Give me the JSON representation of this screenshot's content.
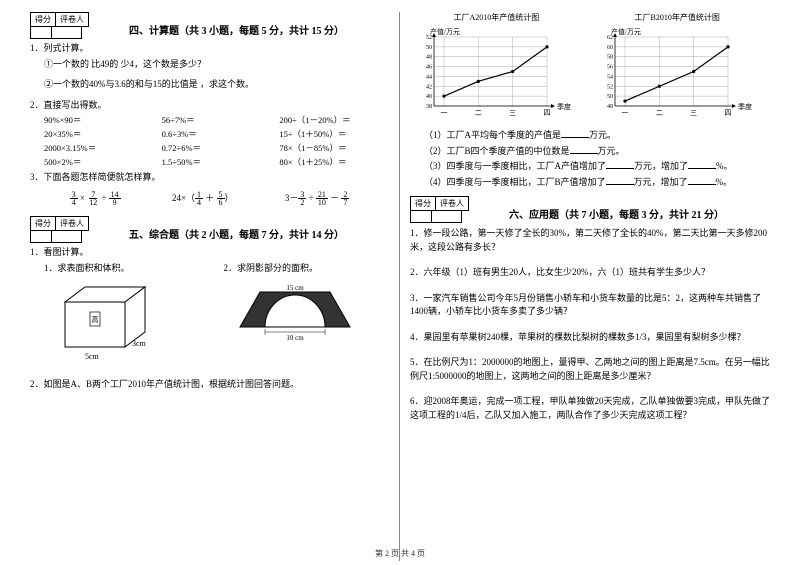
{
  "left": {
    "score_header": [
      "得分",
      "评卷人"
    ],
    "section4_title": "四、计算题（共 3 小题，每题 5 分，共计 15 分）",
    "q1": "1．列式计算。",
    "q1_1": "①一个数的 比49的 少4，这个数是多少？",
    "q1_2": "②一个数的40%与3.6的和与15的比值是 ，求这个数。",
    "q2": "2．直接写出得数。",
    "calc": [
      [
        "90%×90＝",
        "56÷7%＝",
        "200÷（1－20%）＝"
      ],
      [
        "20×35%＝",
        "0.6÷3%＝",
        "15÷（1＋50%）＝"
      ],
      [
        "2000×3.15%＝",
        "0.72÷6%＝",
        "78×（1－85%）＝"
      ],
      [
        "500×2%＝",
        "1.5÷50%＝",
        "80×（1＋25%）＝"
      ]
    ],
    "q3": "3．下面各题怎样简便就怎样算。",
    "fracs": [
      "3/4 × 7/12 ÷ 14/9",
      "24×（1/4 ＋ 5/6）",
      "3－3/2 ÷ 21/10 － 2/7"
    ],
    "section5_title": "五、综合题（共 2 小题，每题 7 分，共计 14 分）",
    "q5_1": "1．看图计算。",
    "q5_1a": "1．求表面积和体积。",
    "q5_1b": "2．求阴影部分的面积。",
    "cuboid": {
      "w": "5cm",
      "h": "3cm",
      "d_label": "高"
    },
    "arch": {
      "top": "15 cm",
      "bottom": "10 cm"
    },
    "q5_2": "2．如图是A、B两个工厂2010年产值统计图，根据统计图回答问题。"
  },
  "right": {
    "chart_a": {
      "title": "工厂A2010年产值统计图",
      "ylabel": "产值/万元",
      "xlabel": "季度",
      "xticks": [
        "一",
        "二",
        "三",
        "四"
      ],
      "yticks": [
        38,
        40,
        42,
        44,
        46,
        48,
        50,
        52
      ],
      "points": [
        40,
        43,
        45,
        50
      ],
      "line_color": "#000000",
      "grid_color": "#999999",
      "bg": "#ffffff"
    },
    "chart_b": {
      "title": "工厂B2010年产值统计图",
      "ylabel": "产值/万元",
      "xlabel": "季度",
      "xticks": [
        "一",
        "二",
        "三",
        "四"
      ],
      "yticks": [
        48,
        50,
        52,
        54,
        56,
        58,
        60,
        62
      ],
      "points": [
        49,
        52,
        55,
        60
      ],
      "line_color": "#000000",
      "grid_color": "#999999",
      "bg": "#ffffff"
    },
    "stat_q1": "（1）工厂A平均每个季度的产值是",
    "stat_q1_unit": "万元。",
    "stat_q2": "（2）工厂B四个季度产值的中位数是",
    "stat_q2_unit": "万元。",
    "stat_q3": "（3）四季度与一季度相比，工厂A产值增加了",
    "stat_q3_mid": "万元，增加了",
    "stat_q3_end": "%。",
    "stat_q4": "（4）四季度与一季度相比，工厂B产值增加了",
    "stat_q4_mid": "万元，增加了",
    "stat_q4_end": "%。",
    "score_header": [
      "得分",
      "评卷人"
    ],
    "section6_title": "六、应用题（共 7 小题，每题 3 分，共计 21 分）",
    "app1": "1．修一段公路，第一天修了全长的30%，第二天修了全长的40%，第二天比第一天多修200米，这段公路有多长？",
    "app2": "2．六年级（1）班有男生20人，比女生少20%，六（1）班共有学生多少人？",
    "app3": "3．一家汽车销售公司今年5月份销售小轿车和小货车数量的比是5：2，这两种车共销售了1400辆，小轿车比小货车多卖了多少辆？",
    "app4": "4．果园里有苹果树240棵，苹果树的棵数比梨树的棵数多1/3，果园里有梨树多少棵？",
    "app5": "5．在比例尺为1：2000000的地图上，量得甲、乙两地之间的图上距离是7.5cm。在另一幅比例尺1:5000000的地图上，这两地之间的图上距离是多少厘米？",
    "app6": "6．迎2008年奥运，完成一项工程，甲队单独做20天完成，乙队单独做要3完成，甲队先做了这项工程的1/4后，乙队又加入施工，两队合作了多少天完成这项工程？"
  },
  "footer": "第 2 页 共 4 页"
}
